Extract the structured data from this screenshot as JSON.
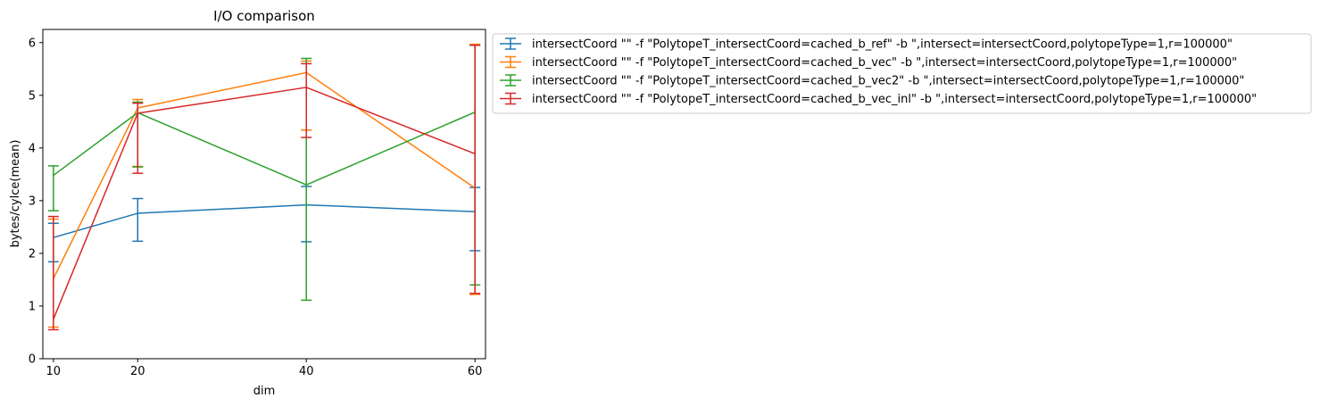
{
  "chart_data": {
    "type": "line",
    "title": "I/O comparison",
    "xlabel": "dim",
    "ylabel": "bytes/cylce(mean)",
    "x": [
      10,
      20,
      40,
      60
    ],
    "x_ticks": [
      10,
      20,
      40,
      60
    ],
    "xlim": [
      8.75,
      61.25
    ],
    "ylim": [
      0,
      6.25
    ],
    "y_ticks": [
      0,
      1,
      2,
      3,
      4,
      5,
      6
    ],
    "grid": false,
    "legend_position": "outside-upper-right",
    "error_bars": true,
    "series": [
      {
        "name": "intersectCoord \"\" -f \"PolytopeT_intersectCoord=cached_b_ref\" -b \",intersect=intersectCoord,polytopeType=1,r=100000\"",
        "color": "#1f77b4",
        "values": [
          2.3,
          2.76,
          2.92,
          2.79
        ],
        "error_low": [
          1.84,
          2.23,
          2.22,
          2.05
        ],
        "error_high": [
          2.57,
          3.04,
          3.27,
          3.25
        ]
      },
      {
        "name": "intersectCoord \"\" -f \"PolytopeT_intersectCoord=cached_b_vec\" -b \",intersect=intersectCoord,polytopeType=1,r=100000\"",
        "color": "#ff7f0e",
        "values": [
          1.52,
          4.76,
          5.43,
          3.24
        ],
        "error_low": [
          0.6,
          3.65,
          4.34,
          1.22
        ],
        "error_high": [
          2.65,
          4.92,
          5.65,
          5.97
        ]
      },
      {
        "name": "intersectCoord \"\" -f \"PolytopeT_intersectCoord=cached_b_vec2\" -b \",intersect=intersectCoord,polytopeType=1,r=100000\"",
        "color": "#2ca02c",
        "values": [
          3.48,
          4.67,
          3.3,
          4.68
        ],
        "error_low": [
          2.81,
          3.64,
          1.11,
          1.4
        ],
        "error_high": [
          3.66,
          4.87,
          5.7,
          5.95
        ]
      },
      {
        "name": "intersectCoord \"\" -f \"PolytopeT_intersectCoord=cached_b_vec_inl\" -b \",intersect=intersectCoord,polytopeType=1,r=100000\"",
        "color": "#d62728",
        "values": [
          0.75,
          4.66,
          5.15,
          3.89
        ],
        "error_low": [
          0.55,
          3.52,
          4.2,
          1.24
        ],
        "error_high": [
          2.7,
          4.85,
          5.6,
          5.95
        ]
      }
    ]
  }
}
